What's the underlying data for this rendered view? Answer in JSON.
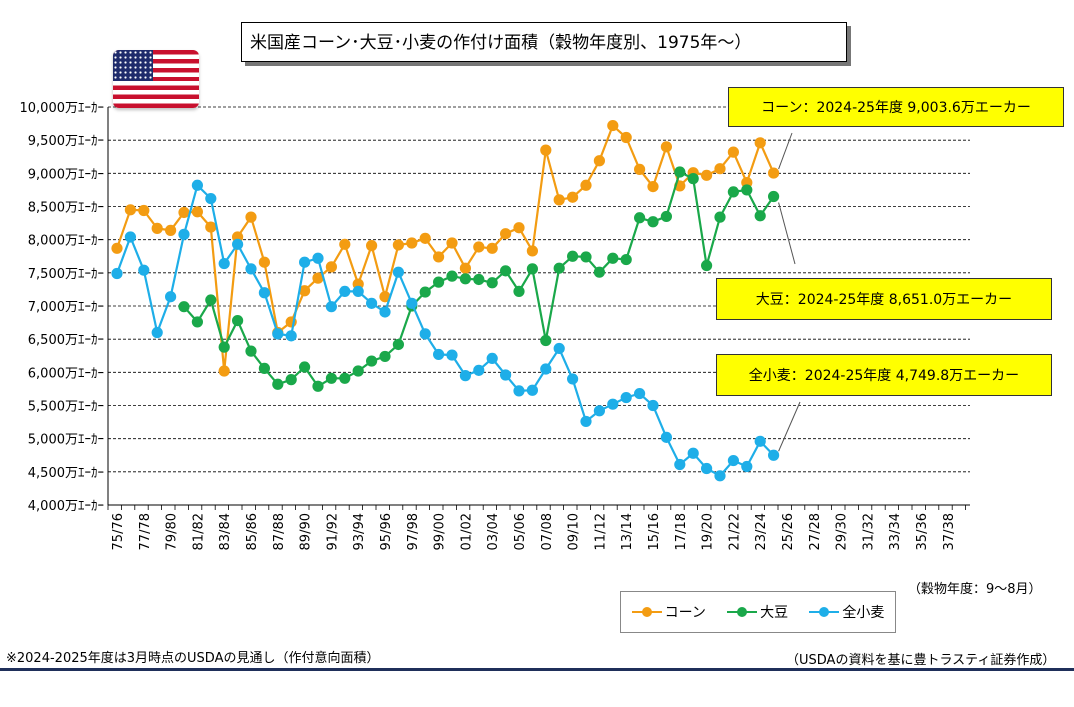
{
  "title": "米国産コーン･大豆･小麦の作付け面積（穀物年度別、1975年～）",
  "chart_data": {
    "type": "line",
    "ylim": [
      4000,
      10000
    ],
    "y_ticks": [
      "10,000万ｴｰｶｰ",
      "9,500万ｴｰｶｰ",
      "9,000万ｴｰｶｰ",
      "8,500万ｴｰｶｰ",
      "8,000万ｴｰｶｰ",
      "7,500万ｴｰｶｰ",
      "7,000万ｴｰｶｰ",
      "6,500万ｴｰｶｰ",
      "6,000万ｴｰｶｰ",
      "5,500万ｴｰｶｰ",
      "5,000万ｴｰｶｰ",
      "4,500万ｴｰｶｰ",
      "4,000万ｴｰｶｰ"
    ],
    "x_ticks": [
      "75/76",
      "77/78",
      "79/80",
      "81/82",
      "83/84",
      "85/86",
      "87/88",
      "89/90",
      "91/92",
      "93/94",
      "95/96",
      "97/98",
      "99/00",
      "01/02",
      "03/04",
      "05/06",
      "07/08",
      "09/10",
      "11/12",
      "13/14",
      "15/16",
      "17/18",
      "19/20",
      "21/22",
      "23/24",
      "25/26",
      "27/28",
      "29/30",
      "31/32",
      "33/34",
      "35/36",
      "37/38"
    ],
    "x_start": 1975,
    "x_end": 2039,
    "xlabel": "（穀物年度：9～8月）",
    "grid": "horizontal dashed",
    "series": [
      {
        "name": "コーン",
        "color": "#f39c12",
        "values": [
          7870,
          8450,
          8440,
          8170,
          8140,
          8410,
          8420,
          8190,
          6020,
          8040,
          8340,
          7660,
          6600,
          6760,
          7230,
          7420,
          7590,
          7930,
          7330,
          7910,
          7140,
          7920,
          7950,
          8020,
          7740,
          7950,
          7570,
          7890,
          7870,
          8090,
          8180,
          7830,
          9350,
          8600,
          8640,
          8820,
          9190,
          9720,
          9540,
          9060,
          8800,
          9400,
          8810,
          9010,
          8970,
          9070,
          9320,
          8860,
          9460,
          9004
        ]
      },
      {
        "name": "大豆",
        "color": "#1aa84a",
        "values": [
          null,
          null,
          null,
          null,
          null,
          6990,
          6760,
          7090,
          6380,
          6780,
          6320,
          6060,
          5820,
          5890,
          6080,
          5790,
          5910,
          5910,
          6020,
          6170,
          6240,
          6420,
          7000,
          7210,
          7360,
          7450,
          7410,
          7400,
          7350,
          7530,
          7220,
          7560,
          6480,
          7570,
          7750,
          7740,
          7510,
          7720,
          7700,
          8330,
          8270,
          8350,
          9020,
          8920,
          7610,
          8340,
          8720,
          8750,
          8360,
          8651
        ]
      },
      {
        "name": "全小麦",
        "color": "#1eaee8",
        "values": [
          7490,
          8040,
          7540,
          6600,
          7140,
          8080,
          8820,
          8620,
          7640,
          7930,
          7560,
          7200,
          6580,
          6550,
          7660,
          7720,
          6990,
          7220,
          7220,
          7040,
          6910,
          7510,
          7040,
          6580,
          6270,
          6260,
          5950,
          6030,
          6210,
          5960,
          5720,
          5730,
          6050,
          6360,
          5900,
          5260,
          5420,
          5520,
          5620,
          5680,
          5500,
          5020,
          4610,
          4780,
          4550,
          4440,
          4670,
          4580,
          4960,
          4750
        ]
      }
    ],
    "callouts": [
      {
        "series": "コーン",
        "text": "コーン：2024-25年度  9,003.6万エーカー"
      },
      {
        "series": "大豆",
        "text": "大豆：2024-25年度  8,651.0万エーカー"
      },
      {
        "series": "全小麦",
        "text": "全小麦：2024-25年度  4,749.8万エーカー"
      }
    ]
  },
  "notes": {
    "left": "※2024-2025年度は3月時点のUSDAの見通し（作付意向面積）",
    "right": "（USDAの資料を基に豊トラスティ証券作成）"
  },
  "flag_icon": "us-flag-icon"
}
